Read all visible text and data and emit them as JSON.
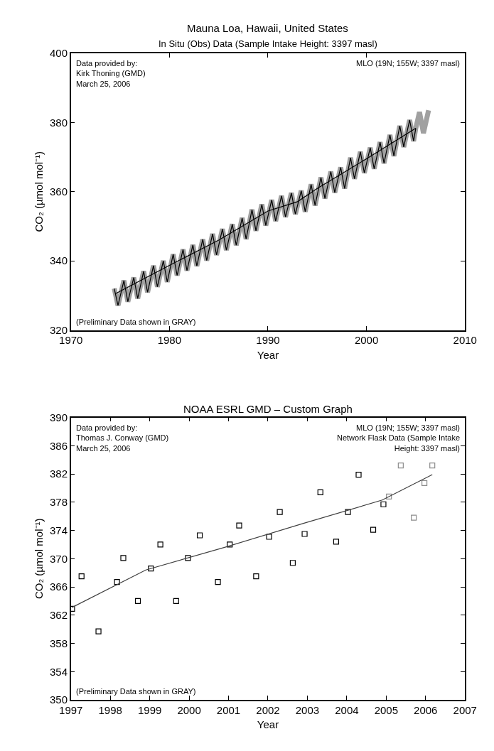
{
  "chart_data": [
    {
      "type": "line",
      "title": "Mauna Loa, Hawaii, United States",
      "subtitle": "In Situ (Obs) Data (Sample Intake Height: 3397 masl)",
      "xlabel": "Year",
      "ylabel": "CO₂ (µmol mol⁻¹)",
      "annotations": [
        "Data provided by:\nKirk Thoning (GMD)\nMarch 25, 2006",
        "MLO (19N; 155W; 3397 masl)",
        "(Preliminary Data shown in GRAY)"
      ],
      "xlim": [
        1970,
        2010
      ],
      "xticks": [
        1970,
        1980,
        1990,
        2000,
        2010
      ],
      "ylim": [
        320,
        400
      ],
      "yticks": [
        320,
        340,
        360,
        380,
        400
      ],
      "series": [
        {
          "color": "#a0a0a0",
          "x": [
            1974.4,
            1974.78,
            1975.38,
            1975.78,
            1976.38,
            1976.78,
            1977.38,
            1977.78,
            1978.38,
            1978.78,
            1979.38,
            1979.78,
            1980.38,
            1980.78,
            1981.38,
            1981.78,
            1982.38,
            1982.78,
            1983.38,
            1983.78,
            1984.38,
            1984.78,
            1985.38,
            1985.78,
            1986.38,
            1986.78,
            1987.38,
            1987.78,
            1988.38,
            1988.78,
            1989.38,
            1989.78,
            1990.38,
            1990.78,
            1991.38,
            1991.78,
            1992.38,
            1992.78,
            1993.38,
            1993.78,
            1994.38,
            1994.78,
            1995.38,
            1995.78,
            1996.38,
            1996.78,
            1997.38,
            1997.78,
            1998.38,
            1998.78,
            1999.38,
            1999.78,
            2000.38,
            2000.78,
            2001.38,
            2001.78,
            2002.38,
            2002.78,
            2003.38,
            2003.78,
            2004.38,
            2004.78,
            2005.0,
            2005.38,
            2005.78,
            2006.3
          ],
          "values": [
            332.0,
            327.1,
            334.3,
            328.2,
            335.2,
            329.1,
            337.0,
            330.9,
            338.6,
            332.5,
            340.0,
            333.9,
            341.9,
            335.8,
            343.3,
            337.2,
            344.6,
            338.5,
            346.2,
            340.1,
            347.8,
            341.7,
            349.2,
            343.1,
            350.6,
            344.5,
            352.4,
            346.3,
            354.8,
            348.7,
            356.3,
            350.2,
            357.6,
            351.5,
            358.8,
            352.7,
            359.6,
            353.5,
            360.3,
            354.2,
            362.1,
            356.0,
            364.1,
            358.0,
            365.8,
            359.7,
            367.0,
            360.9,
            369.8,
            363.7,
            371.5,
            365.4,
            372.7,
            366.6,
            374.3,
            368.2,
            376.4,
            370.3,
            379.0,
            372.9,
            380.7,
            374.6,
            378.3,
            383.0,
            376.9,
            383.5
          ]
        },
        {
          "color": "#000000",
          "x": [
            1974.4,
            1974.78,
            1975.38,
            1975.78,
            1976.38,
            1976.78,
            1977.38,
            1977.78,
            1978.38,
            1978.78,
            1979.38,
            1979.78,
            1980.38,
            1980.78,
            1981.38,
            1981.78,
            1982.38,
            1982.78,
            1983.38,
            1983.78,
            1984.38,
            1984.78,
            1985.38,
            1985.78,
            1986.38,
            1986.78,
            1987.38,
            1987.78,
            1988.38,
            1988.78,
            1989.38,
            1989.78,
            1990.38,
            1990.78,
            1991.38,
            1991.78,
            1992.38,
            1992.78,
            1993.38,
            1993.78,
            1994.38,
            1994.78,
            1995.38,
            1995.78,
            1996.38,
            1996.78,
            1997.38,
            1997.78,
            1998.38,
            1998.78,
            1999.38,
            1999.78,
            2000.38,
            2000.78,
            2001.38,
            2001.78,
            2002.38,
            2002.78,
            2003.38,
            2003.78,
            2004.38,
            2004.78,
            2005.0
          ],
          "values": [
            332.0,
            327.1,
            334.3,
            328.2,
            335.2,
            329.1,
            337.0,
            330.9,
            338.6,
            332.5,
            340.0,
            333.9,
            341.9,
            335.8,
            343.3,
            337.2,
            344.6,
            338.5,
            346.2,
            340.1,
            347.8,
            341.7,
            349.2,
            343.1,
            350.6,
            344.5,
            352.4,
            346.3,
            354.8,
            348.7,
            356.3,
            350.2,
            357.6,
            351.5,
            358.8,
            352.7,
            359.6,
            353.5,
            360.3,
            354.2,
            362.1,
            356.0,
            364.1,
            358.0,
            365.8,
            359.7,
            367.0,
            360.9,
            369.8,
            363.7,
            371.5,
            365.4,
            372.7,
            366.6,
            374.3,
            368.2,
            376.4,
            370.3,
            379.0,
            372.9,
            380.7,
            374.6,
            378.3
          ]
        },
        {
          "color": "#000000",
          "x": [
            1974.5,
            1980,
            1985,
            1990,
            1993,
            1995,
            2000,
            2005
          ],
          "values": [
            330.5,
            338.7,
            346.0,
            354.4,
            357.1,
            360.9,
            369.5,
            378.3
          ]
        }
      ]
    },
    {
      "type": "scatter",
      "title": "NOAA ESRL GMD – Custom Graph",
      "xlabel": "Year",
      "ylabel": "CO₂ (µmol mol⁻¹)",
      "annotations": [
        "Data provided by:\nThomas J. Conway (GMD)\nMarch 25, 2006",
        "MLO (19N; 155W; 3397 masl)\nNetwork Flask Data (Sample Intake\nHeight: 3397 masl)",
        "(Preliminary Data shown in GRAY)"
      ],
      "xlim": [
        1997,
        2007
      ],
      "xticks": [
        1997,
        1998,
        1999,
        2000,
        2001,
        2002,
        2003,
        2004,
        2005,
        2006,
        2007
      ],
      "ylim": [
        350,
        390
      ],
      "yticks": [
        350,
        354,
        358,
        362,
        366,
        370,
        374,
        378,
        382,
        386,
        390
      ],
      "marker": "square",
      "series": [
        {
          "color": "#000000",
          "x": [
            1997.03,
            1997.27,
            1997.7,
            1998.17,
            1998.33,
            1998.7,
            1999.03,
            1999.27,
            1999.67,
            1999.97,
            2000.27,
            2000.73,
            2001.03,
            2001.27,
            2001.7,
            2002.03,
            2002.3,
            2002.63,
            2002.93,
            2003.33,
            2003.73,
            2004.03,
            2004.3,
            2004.67,
            2004.93
          ],
          "values": [
            362.9,
            367.5,
            359.7,
            366.7,
            370.1,
            364.0,
            368.6,
            372.0,
            364.0,
            370.1,
            373.3,
            366.7,
            372.0,
            374.7,
            367.5,
            373.1,
            376.6,
            369.4,
            373.5,
            379.4,
            372.4,
            376.6,
            381.9,
            374.1,
            377.7
          ]
        },
        {
          "color": "#8c8c8c",
          "x": [
            2005.07,
            2005.37,
            2005.7,
            2005.97,
            2006.17
          ],
          "values": [
            378.8,
            383.2,
            375.8,
            380.7,
            383.2
          ]
        },
        {
          "type": "line",
          "marker": "none",
          "color": "#404040",
          "x": [
            1997.03,
            1998.9,
            2000.9,
            2002.9,
            2004.9,
            2006.17
          ],
          "values": [
            363.1,
            368.4,
            371.6,
            375.0,
            378.3,
            381.9
          ]
        }
      ]
    }
  ]
}
